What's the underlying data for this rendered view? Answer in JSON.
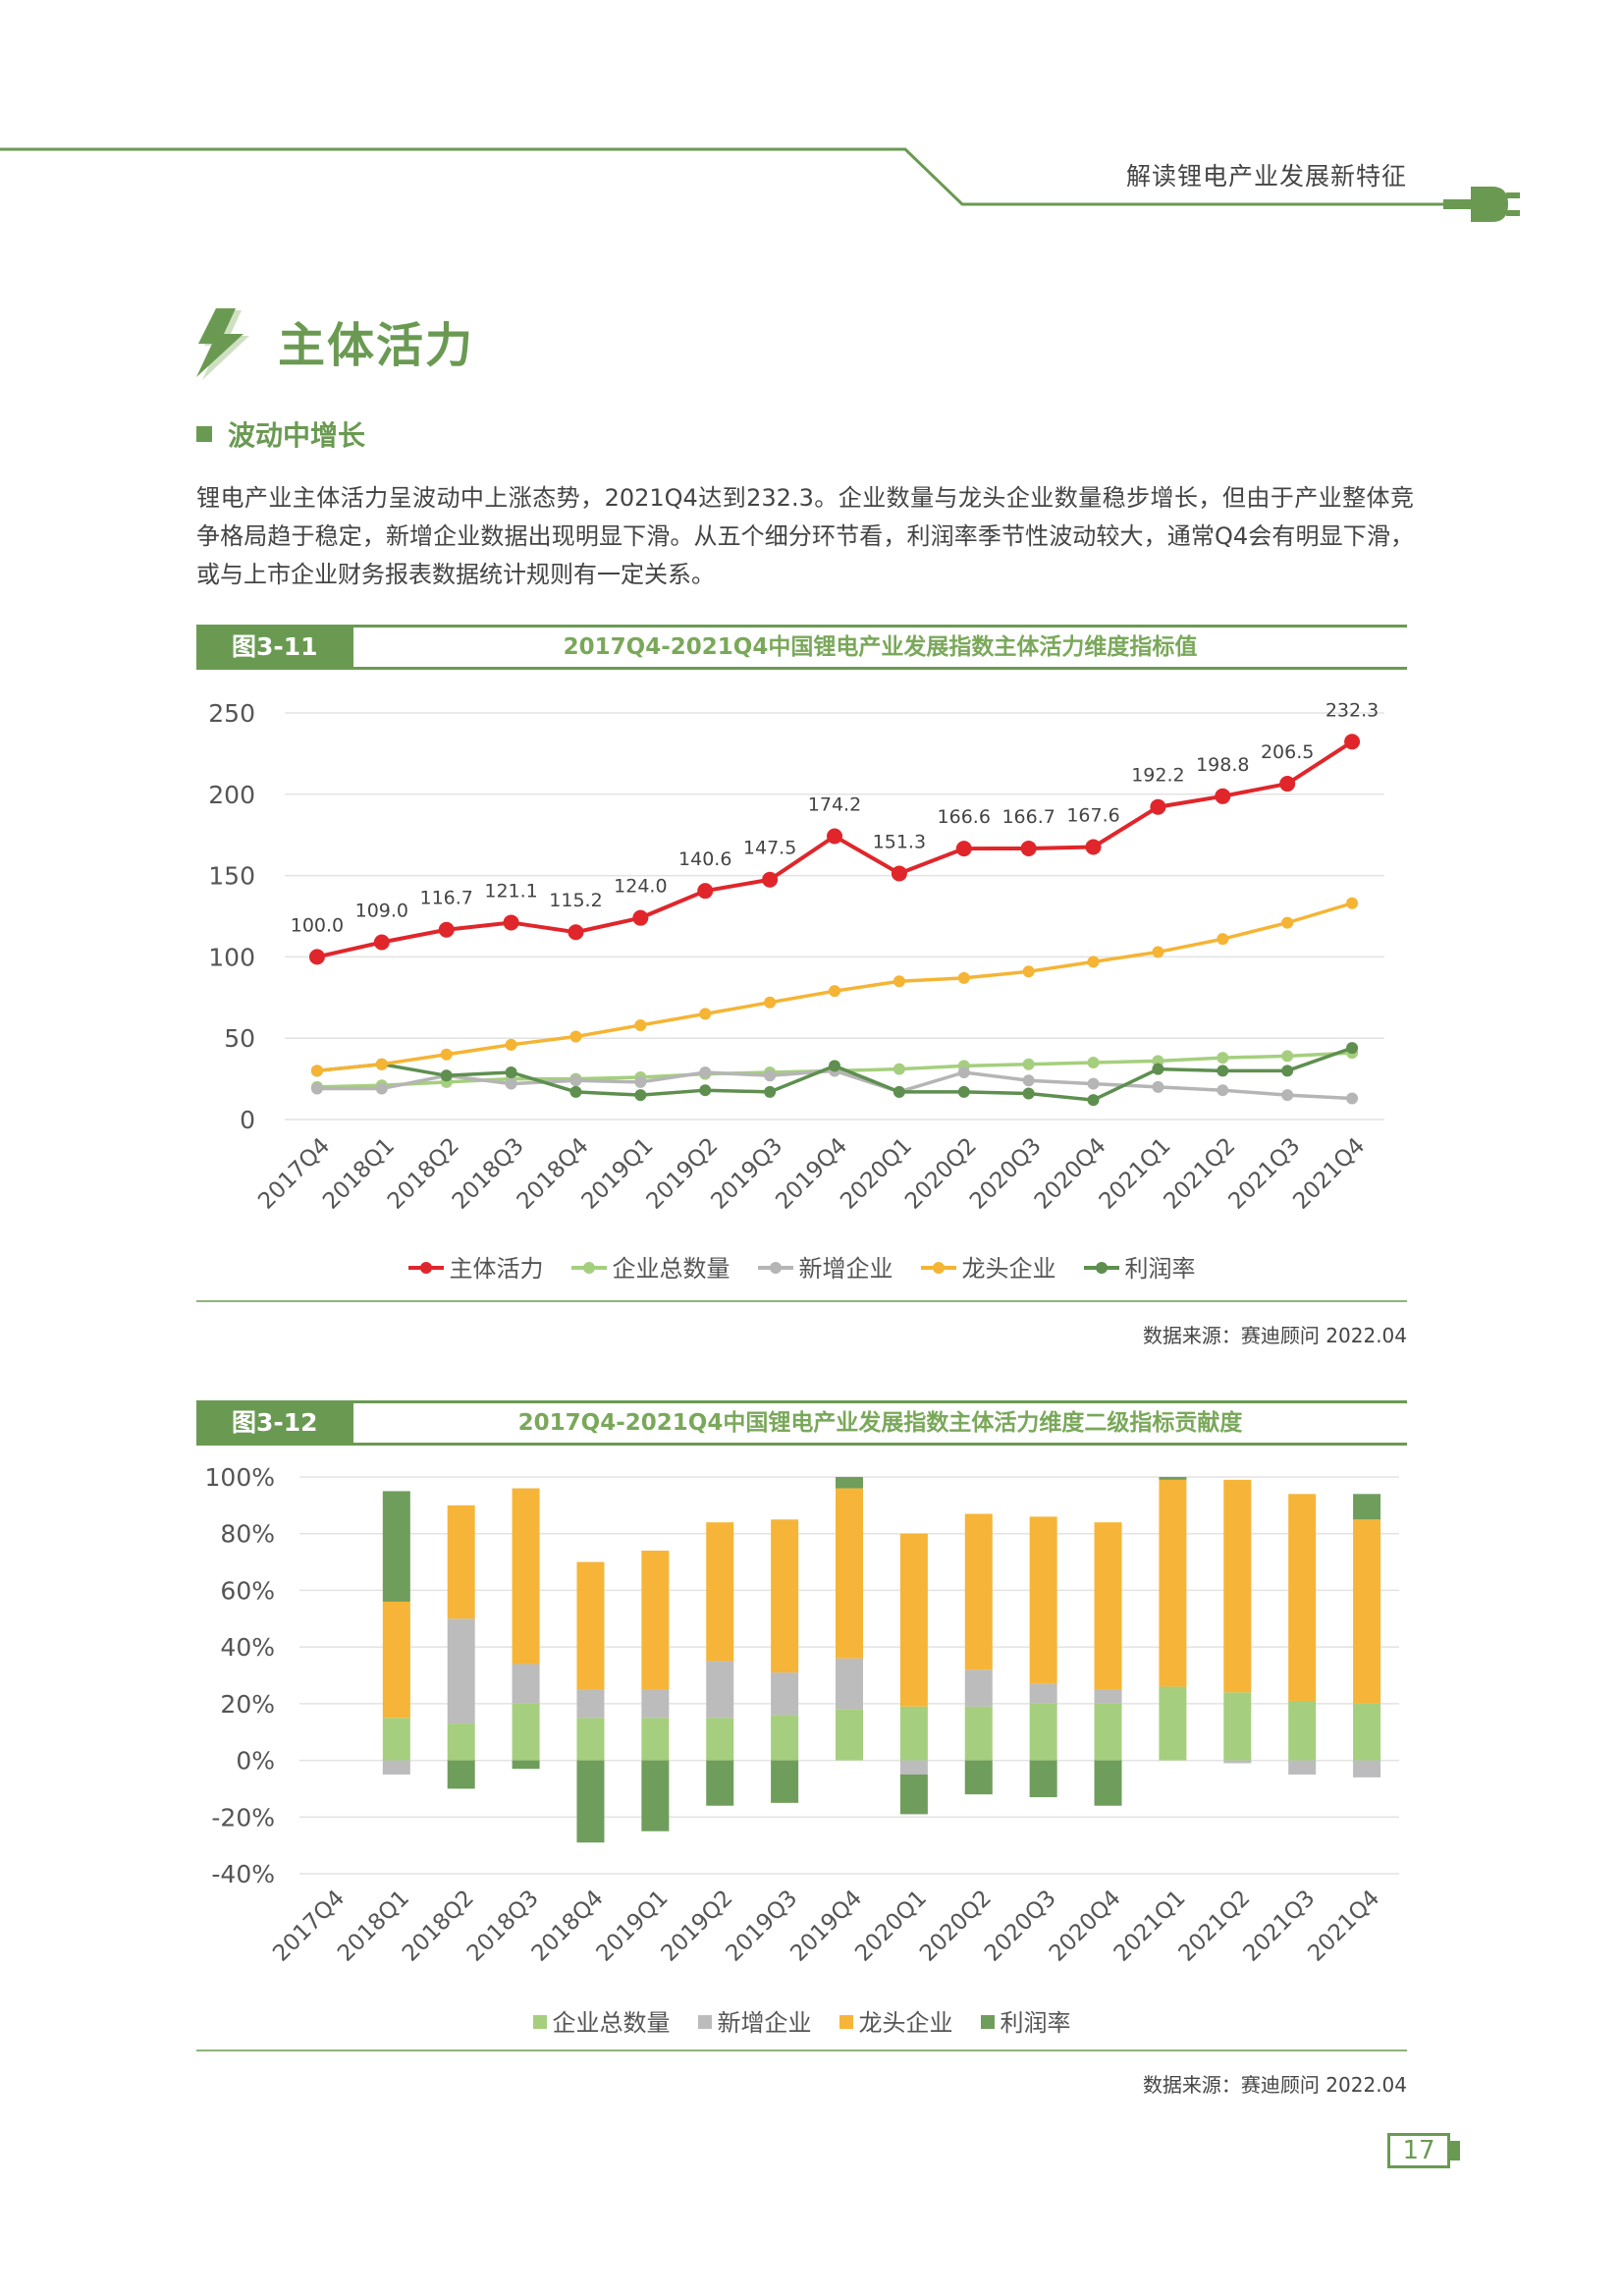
{
  "header": {
    "title": "解读锂电产业发展新特征"
  },
  "section": {
    "title": "主体活力",
    "subtitle": "波动中增长"
  },
  "paragraph": "锂电产业主体活力呈波动中上涨态势，2021Q4达到232.3。企业数量与龙头企业数量稳步增长，但由于产业整体竞争格局趋于稳定，新增企业数据出现明显下滑。从五个细分环节看，利润率季节性波动较大，通常Q4会有明显下滑，或与上市企业财务报表数据统计规则有一定关系。",
  "figure1": {
    "number": "图3-11",
    "title": "2017Q4-2021Q4中国锂电产业发展指数主体活力维度指标值",
    "source": "数据来源：赛迪顾问    2022.04"
  },
  "figure2": {
    "number": "图3-12",
    "title": "2017Q4-2021Q4中国锂电产业发展指数主体活力维度二级指标贡献度",
    "source": "数据来源：赛迪顾问    2022.04"
  },
  "page_number": "17",
  "chart_data": [
    {
      "type": "line",
      "categories": [
        "2017Q4",
        "2018Q1",
        "2018Q2",
        "2018Q3",
        "2018Q4",
        "2019Q1",
        "2019Q2",
        "2019Q3",
        "2019Q4",
        "2020Q1",
        "2020Q2",
        "2020Q3",
        "2020Q4",
        "2021Q1",
        "2021Q2",
        "2021Q3",
        "2021Q4"
      ],
      "ylim": [
        0,
        250
      ],
      "yticks": [
        "0",
        "50",
        "100",
        "150",
        "200",
        "250"
      ],
      "grid": true,
      "legend_position": "bottom",
      "series": [
        {
          "name": "主体活力",
          "color": "#e0262b",
          "show_labels": true,
          "values": [
            100.0,
            109.0,
            116.7,
            121.1,
            115.2,
            124.0,
            140.6,
            147.5,
            174.2,
            151.3,
            166.6,
            166.7,
            167.6,
            192.2,
            198.8,
            206.5,
            232.3
          ],
          "labels": [
            "100.0",
            "109.0",
            "116.7",
            "121.1",
            "115.2",
            "124.0",
            "140.6",
            "147.5",
            "174.2",
            "151.3",
            "166.6",
            "166.7",
            "167.6",
            "192.2",
            "198.8",
            "206.5",
            "232.3"
          ]
        },
        {
          "name": "企业总数量",
          "color": "#a5cf7e",
          "values": [
            20,
            21,
            23,
            25,
            25,
            26,
            28,
            29,
            30,
            31,
            33,
            34,
            35,
            36,
            38,
            39,
            41
          ]
        },
        {
          "name": "新增企业",
          "color": "#b5b5b5",
          "values": [
            19,
            19,
            27,
            22,
            24,
            23,
            29,
            27,
            30,
            17,
            29,
            24,
            22,
            20,
            18,
            15,
            13
          ]
        },
        {
          "name": "龙头企业",
          "color": "#f5b433",
          "values": [
            30,
            34,
            40,
            46,
            51,
            58,
            65,
            72,
            79,
            85,
            87,
            91,
            97,
            103,
            111,
            121,
            133
          ]
        },
        {
          "name": "利润率",
          "color": "#5e8f4f",
          "values": [
            30,
            34,
            27,
            29,
            17,
            15,
            18,
            17,
            33,
            17,
            17,
            16,
            12,
            31,
            30,
            30,
            44
          ]
        }
      ]
    },
    {
      "type": "bar",
      "stacked": true,
      "categories": [
        "2017Q4",
        "2018Q1",
        "2018Q2",
        "2018Q3",
        "2018Q4",
        "2019Q1",
        "2019Q2",
        "2019Q3",
        "2019Q4",
        "2020Q1",
        "2020Q2",
        "2020Q3",
        "2020Q4",
        "2021Q1",
        "2021Q2",
        "2021Q3",
        "2021Q4"
      ],
      "ylim": [
        -40,
        100
      ],
      "yticks": [
        "-40%",
        "-20%",
        "0%",
        "20%",
        "40%",
        "60%",
        "80%",
        "100%"
      ],
      "unit": "%",
      "grid": true,
      "legend_position": "bottom",
      "series": [
        {
          "name": "企业总数量",
          "color": "#a5cf7e",
          "values": [
            0,
            15,
            13,
            20,
            15,
            15,
            15,
            16,
            18,
            19,
            19,
            20,
            20,
            26,
            24,
            21,
            20
          ]
        },
        {
          "name": "新增企业",
          "color": "#bcbcbc",
          "values": [
            0,
            -5,
            37,
            14,
            10,
            10,
            20,
            15,
            18,
            -5,
            13,
            7,
            5,
            0,
            -1,
            -5,
            -6
          ]
        },
        {
          "name": "龙头企业",
          "color": "#f6b538",
          "values": [
            0,
            41,
            40,
            62,
            45,
            49,
            49,
            54,
            60,
            61,
            55,
            59,
            59,
            73,
            75,
            73,
            65
          ]
        },
        {
          "name": "利润率",
          "color": "#6f9e5c",
          "values": [
            0,
            39,
            -10,
            -3,
            -29,
            -25,
            -16,
            -15,
            4,
            -14,
            -12,
            -13,
            -16,
            1,
            0,
            0,
            9
          ]
        }
      ]
    }
  ]
}
